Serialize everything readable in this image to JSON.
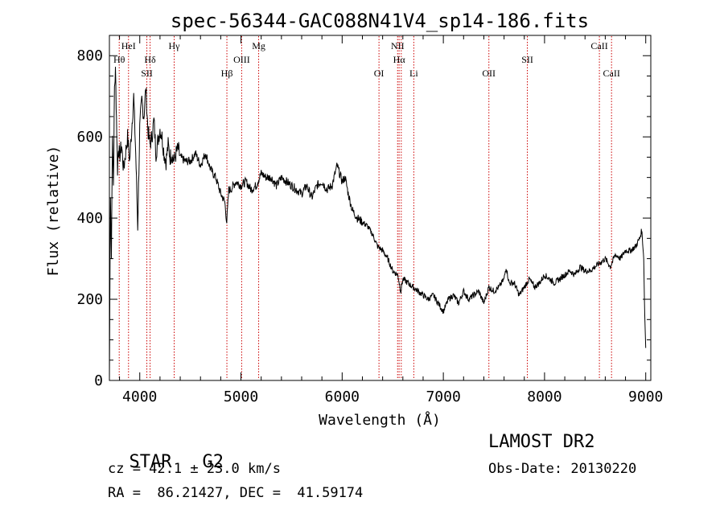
{
  "chart_data": {
    "type": "line",
    "title": "spec-56344-GAC088N41V4_sp14-186.fits",
    "xlabel": "Wavelength (Å)",
    "ylabel": "Flux (relative)",
    "xlim": [
      3700,
      9050
    ],
    "ylim": [
      0,
      850
    ],
    "xticks": [
      4000,
      5000,
      6000,
      7000,
      8000,
      9000
    ],
    "yticks": [
      0,
      200,
      400,
      600,
      800
    ],
    "grid": false,
    "series_color": "#000000",
    "line_color": "#cc0000",
    "series": [
      {
        "x": [
          3700,
          3710,
          3720,
          3730,
          3740,
          3750,
          3760,
          3770,
          3780,
          3790,
          3800,
          3820,
          3840,
          3860,
          3880,
          3900,
          3920,
          3940,
          3960,
          3980,
          4000,
          4020,
          4040,
          4060,
          4080,
          4100,
          4120,
          4140,
          4160,
          4180,
          4200,
          4220,
          4240,
          4260,
          4280,
          4300,
          4320,
          4340,
          4360,
          4380,
          4400,
          4450,
          4500,
          4550,
          4600,
          4650,
          4700,
          4750,
          4800,
          4840,
          4860,
          4880,
          4900,
          4950,
          5000,
          5050,
          5100,
          5150,
          5200,
          5250,
          5300,
          5350,
          5400,
          5450,
          5500,
          5550,
          5600,
          5650,
          5700,
          5750,
          5800,
          5850,
          5900,
          5950,
          6000,
          6030,
          6060,
          6100,
          6150,
          6200,
          6250,
          6300,
          6350,
          6400,
          6450,
          6500,
          6550,
          6580,
          6600,
          6650,
          6700,
          6750,
          6800,
          6850,
          6900,
          6950,
          7000,
          7050,
          7100,
          7150,
          7200,
          7250,
          7300,
          7350,
          7400,
          7450,
          7500,
          7550,
          7600,
          7620,
          7650,
          7700,
          7750,
          7800,
          7850,
          7900,
          7950,
          8000,
          8050,
          8100,
          8150,
          8200,
          8250,
          8300,
          8350,
          8400,
          8450,
          8500,
          8550,
          8600,
          8650,
          8700,
          8750,
          8800,
          8850,
          8900,
          8920,
          8940,
          8960,
          8970,
          8980,
          8990,
          9000
        ],
        "y": [
          0,
          450,
          300,
          620,
          480,
          720,
          760,
          650,
          520,
          580,
          550,
          580,
          520,
          560,
          600,
          540,
          620,
          700,
          560,
          380,
          620,
          690,
          650,
          720,
          620,
          580,
          600,
          640,
          560,
          590,
          620,
          600,
          560,
          540,
          580,
          550,
          560,
          540,
          560,
          570,
          550,
          540,
          540,
          560,
          530,
          560,
          520,
          500,
          460,
          440,
          390,
          470,
          470,
          490,
          480,
          490,
          470,
          480,
          510,
          500,
          500,
          480,
          500,
          490,
          480,
          470,
          460,
          480,
          450,
          480,
          490,
          470,
          480,
          530,
          490,
          500,
          460,
          420,
          400,
          390,
          380,
          360,
          330,
          320,
          300,
          270,
          260,
          220,
          250,
          240,
          230,
          220,
          210,
          200,
          210,
          190,
          170,
          200,
          210,
          190,
          220,
          200,
          210,
          220,
          190,
          230,
          220,
          230,
          250,
          280,
          240,
          240,
          210,
          230,
          250,
          230,
          240,
          260,
          250,
          240,
          250,
          260,
          270,
          260,
          280,
          270,
          270,
          280,
          290,
          300,
          280,
          310,
          300,
          320,
          320,
          330,
          340,
          350,
          370,
          340,
          300,
          160,
          80
        ]
      }
    ],
    "lines": [
      {
        "x": 3797,
        "label": "Hθ",
        "row": 1
      },
      {
        "x": 3889,
        "label": "HeI",
        "row": 0
      },
      {
        "x": 4070,
        "label": "SII",
        "row": 2
      },
      {
        "x": 4102,
        "label": "Hδ",
        "row": 1
      },
      {
        "x": 4340,
        "label": "Hγ",
        "row": 0
      },
      {
        "x": 4861,
        "label": "Hβ",
        "row": 2
      },
      {
        "x": 5007,
        "label": "OIII",
        "row": 1
      },
      {
        "x": 5175,
        "label": "Mg",
        "row": 0
      },
      {
        "x": 6364,
        "label": "OI",
        "row": 2
      },
      {
        "x": 6548,
        "label": "NII",
        "row": 0
      },
      {
        "x": 6563,
        "label": "Hα",
        "row": 1
      },
      {
        "x": 6584,
        "label": "",
        "row": 0
      },
      {
        "x": 6708,
        "label": "Li",
        "row": 2
      },
      {
        "x": 7450,
        "label": "OII",
        "row": 2
      },
      {
        "x": 7830,
        "label": "SII",
        "row": 1
      },
      {
        "x": 8542,
        "label": "CaII",
        "row": 0
      },
      {
        "x": 8662,
        "label": "CaII",
        "row": 2
      }
    ]
  },
  "info": {
    "class_label": "STAR",
    "subclass": "G2",
    "survey": "LAMOST DR2",
    "cz": "cz = 42.1 ± 23.0 km/s",
    "obs_date": "Obs-Date: 20130220",
    "coords": "RA =  86.21427, DEC =  41.59174"
  }
}
